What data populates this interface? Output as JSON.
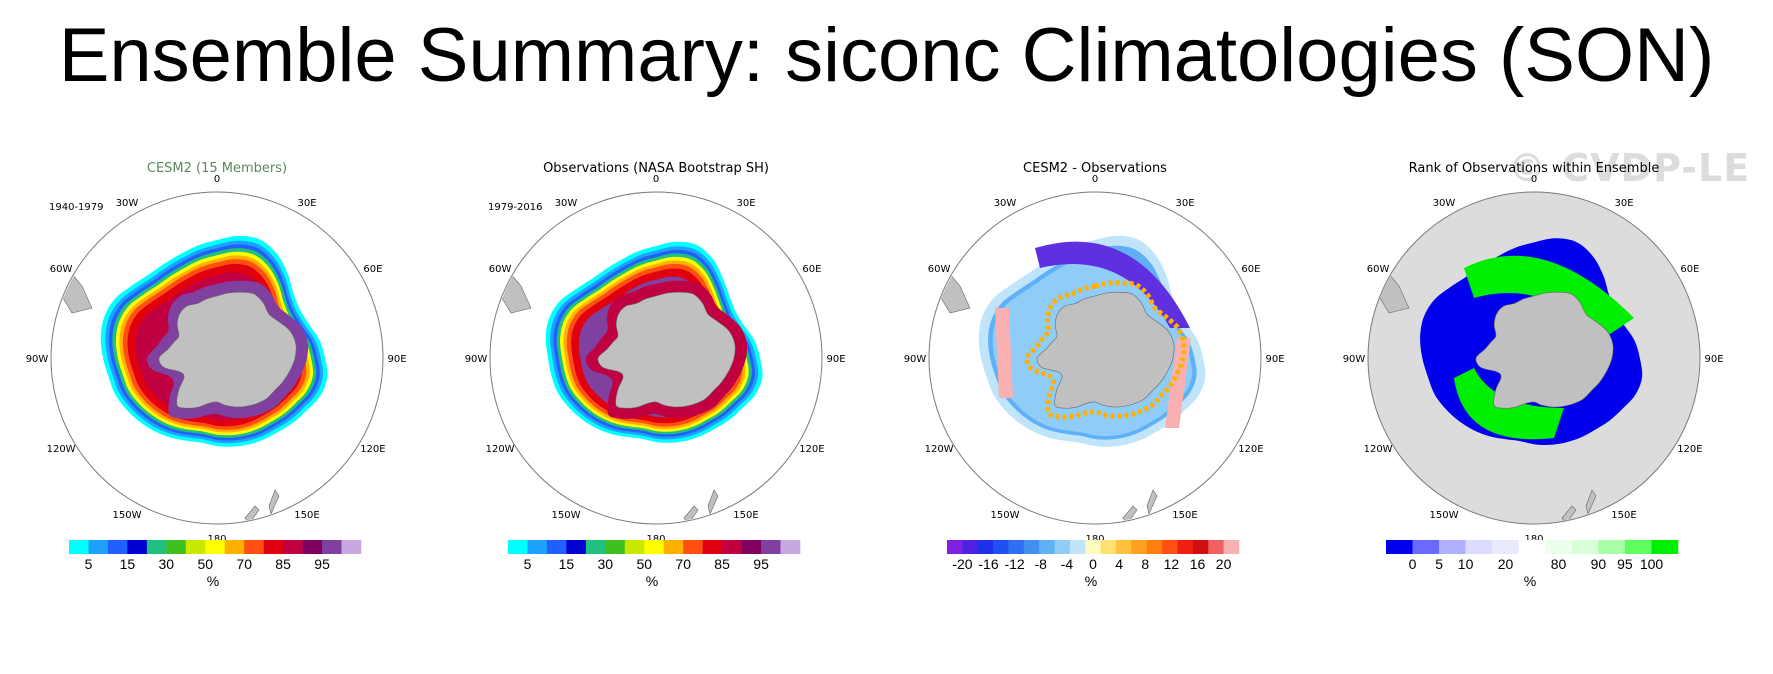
{
  "title": "Ensemble Summary: siconc Climatologies (SON)",
  "watermark": "© CVDP-LE",
  "lon_labels": [
    "0",
    "30E",
    "60E",
    "90E",
    "120E",
    "150E",
    "180",
    "150W",
    "120W",
    "90W",
    "60W",
    "30W"
  ],
  "panels": [
    {
      "title": "CESM2 (15 Members)",
      "title_color": "#5a8a5a",
      "years": "1940-1979",
      "colorbar": {
        "colors": [
          "#00ffff",
          "#1ea0ff",
          "#2060ff",
          "#0000d0",
          "#20c080",
          "#40c020",
          "#c8e800",
          "#ffff00",
          "#ffb000",
          "#ff5010",
          "#e00010",
          "#c00040",
          "#800060",
          "#8040a0",
          "#c8a8e0"
        ],
        "labels": [
          "5",
          "15",
          "30",
          "50",
          "70",
          "85",
          "95"
        ],
        "label_positions": [
          1,
          3,
          5,
          7,
          9,
          11,
          13
        ],
        "units": "%"
      }
    },
    {
      "title": "Observations (NASA Bootstrap SH)",
      "title_color": "#000000",
      "years": "1979-2016",
      "colorbar": {
        "colors": [
          "#00ffff",
          "#1ea0ff",
          "#2060ff",
          "#0000d0",
          "#20c080",
          "#40c020",
          "#c8e800",
          "#ffff00",
          "#ffb000",
          "#ff5010",
          "#e00010",
          "#c00040",
          "#800060",
          "#8040a0",
          "#c8a8e0"
        ],
        "labels": [
          "5",
          "15",
          "30",
          "50",
          "70",
          "85",
          "95"
        ],
        "label_positions": [
          1,
          3,
          5,
          7,
          9,
          11,
          13
        ],
        "units": "%"
      }
    },
    {
      "title": "CESM2 - Observations",
      "title_color": "#000000",
      "years": "",
      "colorbar": {
        "colors": [
          "#8020e0",
          "#5020e0",
          "#2030e8",
          "#2050f0",
          "#3070f0",
          "#4090f0",
          "#60b0f8",
          "#90ccf8",
          "#c0e4fa",
          "#fffac0",
          "#ffe070",
          "#ffc040",
          "#ffa020",
          "#ff8010",
          "#ff5010",
          "#f02010",
          "#d01010",
          "#f06060",
          "#f8b0b0"
        ],
        "labels": [
          "-20",
          "-16",
          "-12",
          "-8",
          "-4",
          "0",
          "4",
          "8",
          "12",
          "16",
          "20"
        ],
        "label_positions": [
          1,
          2.7,
          4.4,
          6.1,
          7.8,
          9.5,
          11.2,
          12.9,
          14.6,
          16.3,
          18
        ],
        "units": "%"
      }
    },
    {
      "title": "Rank of Observations within Ensemble",
      "title_color": "#000000",
      "years": "",
      "colorbar": {
        "colors": [
          "#0000ee",
          "#6a6aff",
          "#b0b0ff",
          "#dcdcff",
          "#eaeaff",
          "#ffffff",
          "#ecffec",
          "#d8ffd8",
          "#a8ffa8",
          "#60ff60",
          "#00ee00"
        ],
        "labels": [
          "0",
          "5",
          "10",
          "20",
          "80",
          "90",
          "95",
          "100"
        ],
        "label_positions": [
          1,
          2,
          3,
          4.5,
          6.5,
          8,
          9,
          10
        ],
        "units": "%"
      }
    }
  ]
}
